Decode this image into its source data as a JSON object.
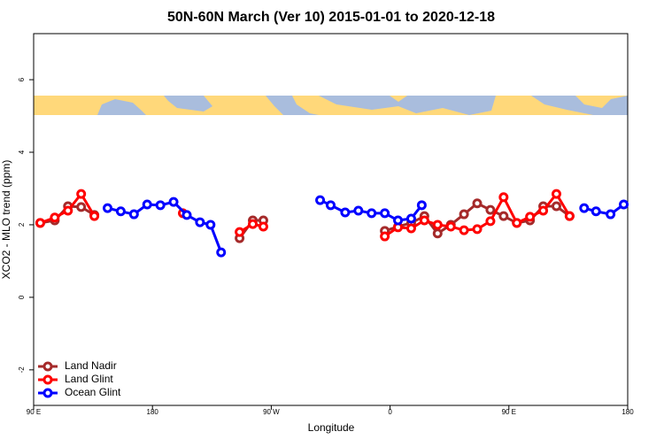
{
  "chart_data": {
    "type": "line",
    "title": "50N-60N March (Ver 10)   2015-01-01 to 2020-12-18",
    "x_label": "Longitude",
    "y_label": "XCO2 - MLO trend (ppm)",
    "xlim": [
      90,
      540
    ],
    "ylim": [
      -2.98,
      7.27
    ],
    "xticks": [
      {
        "value": 90,
        "label": "90 E"
      },
      180,
      {
        "value": 270,
        "label": "90 W"
      },
      {
        "value": 360,
        "label": "0"
      },
      {
        "value": 450,
        "label": "90 E"
      },
      {
        "value": 540,
        "label": "180"
      }
    ],
    "yticks": [
      -2,
      0,
      2,
      4,
      6
    ],
    "legend": "bottom-left",
    "series": [
      {
        "name": "Land Nadir",
        "color": "#a52a2a",
        "x": [
          95,
          106,
          116,
          126,
          136,
          200,
          246,
          256,
          264,
          310,
          356,
          366,
          376,
          386,
          396,
          406,
          416,
          426,
          436,
          446,
          456,
          466,
          476,
          486,
          496
        ],
        "values": [
          2.05,
          2.12,
          2.51,
          2.49,
          2.27,
          null,
          1.63,
          2.12,
          2.12,
          null,
          1.83,
          1.95,
          2.05,
          2.24,
          1.76,
          2.0,
          2.29,
          2.59,
          2.41,
          2.24,
          2.05,
          2.12,
          2.51,
          2.51,
          2.24
        ]
      },
      {
        "name": "Land Glint",
        "color": "#ff0000",
        "x": [
          95,
          106,
          116,
          126,
          136,
          170,
          203,
          225,
          246,
          256,
          264,
          310,
          356,
          366,
          376,
          386,
          396,
          406,
          416,
          426,
          436,
          446,
          456,
          466,
          476,
          486,
          496
        ],
        "values": [
          2.05,
          2.2,
          2.39,
          2.85,
          2.24,
          null,
          2.32,
          null,
          1.8,
          2.02,
          1.95,
          null,
          1.68,
          1.93,
          1.9,
          2.12,
          2.0,
          1.95,
          1.85,
          1.88,
          2.1,
          2.76,
          2.05,
          2.22,
          2.39,
          2.85,
          2.24
        ]
      },
      {
        "name": "Ocean Glint",
        "color": "#0000ff",
        "x": [
          146,
          156,
          166,
          176,
          186,
          196,
          206,
          216,
          224,
          232,
          270,
          307,
          315,
          326,
          336,
          346,
          356,
          366,
          376,
          384,
          450,
          507,
          516,
          527,
          537
        ],
        "values": [
          2.46,
          2.37,
          2.29,
          2.56,
          2.54,
          2.63,
          2.27,
          2.07,
          2.0,
          1.24,
          null,
          2.68,
          2.54,
          2.34,
          2.39,
          2.32,
          2.32,
          2.12,
          2.17,
          2.54,
          null,
          2.46,
          2.37,
          2.29,
          2.56
        ]
      }
    ]
  }
}
